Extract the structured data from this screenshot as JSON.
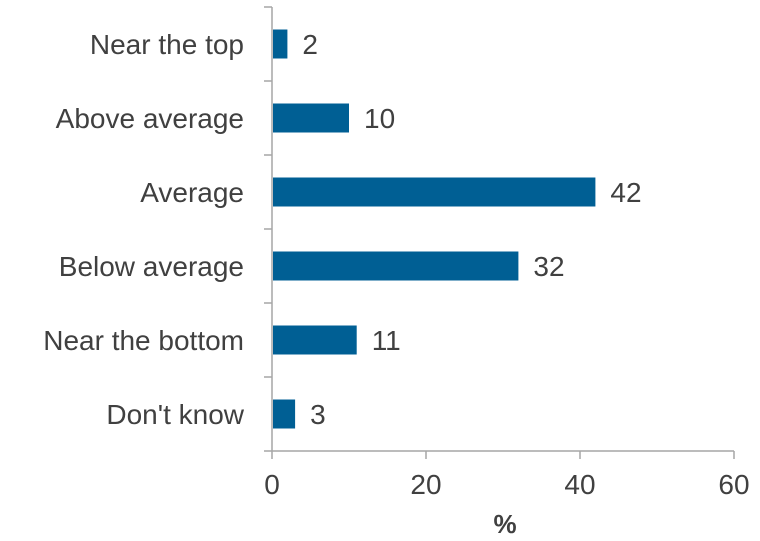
{
  "chart_data": {
    "type": "bar",
    "orientation": "horizontal",
    "categories": [
      "Near the top",
      "Above average",
      "Average",
      "Below average",
      "Near the bottom",
      "Don't know"
    ],
    "values": [
      2,
      10,
      42,
      32,
      11,
      3
    ],
    "data_labels": [
      "2",
      "10",
      "42",
      "32",
      "11",
      "3"
    ],
    "xlabel": "%",
    "ylabel": "",
    "title": "",
    "xlim": [
      0,
      60
    ],
    "xticks": [
      0,
      20,
      40,
      60
    ],
    "xtick_labels": [
      "0",
      "20",
      "40",
      "60"
    ],
    "grid": false,
    "legend": "none",
    "bar_color": "#005f94",
    "text_color": "#404040",
    "axis_color": "#a6a6a6"
  }
}
